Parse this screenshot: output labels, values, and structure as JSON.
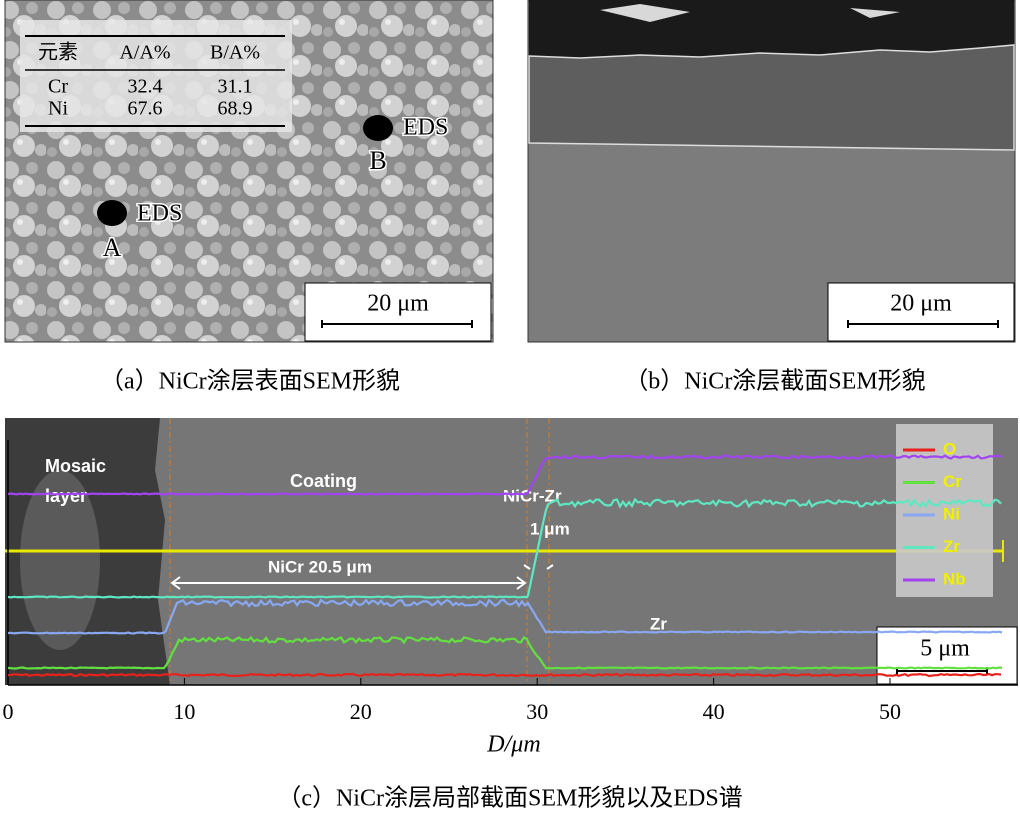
{
  "panel_a": {
    "table": {
      "header": [
        "元素",
        "A/A%",
        "B/A%"
      ],
      "rows": [
        [
          "Cr",
          "32.4",
          "31.1"
        ],
        [
          "Ni",
          "67.6",
          "68.9"
        ]
      ]
    },
    "markers": [
      {
        "label": "EDS",
        "point": "B"
      },
      {
        "label": "EDS",
        "point": "A"
      }
    ],
    "scale_bar": "20 μm",
    "caption": "（a）NiCr涂层表面SEM形貌"
  },
  "panel_b": {
    "scale_bar": "20 μm",
    "caption": "（b）NiCr涂层截面SEM形貌"
  },
  "panel_c": {
    "mosaic_label": [
      "Mosaic",
      "layer"
    ],
    "coating_label": "Coating",
    "interface_label": [
      "NiCr-Zr",
      "1 μm"
    ],
    "nicr_label": "NiCr  20.5 μm",
    "zr_label": "Zr",
    "legend": [
      {
        "name": "O",
        "color": "#e8221a"
      },
      {
        "name": "Cr",
        "color": "#62e040"
      },
      {
        "name": "Ni",
        "color": "#88a8f2"
      },
      {
        "name": "Zr",
        "color": "#5ee8c2"
      },
      {
        "name": "Nb",
        "color": "#a244f2"
      }
    ],
    "scale_bar": "5 μm",
    "x_ticks": [
      0,
      10,
      20,
      30,
      40,
      50
    ],
    "x_label": "D/μm",
    "caption": "（c）NiCr涂层局部截面SEM形貌以及EDS谱"
  }
}
